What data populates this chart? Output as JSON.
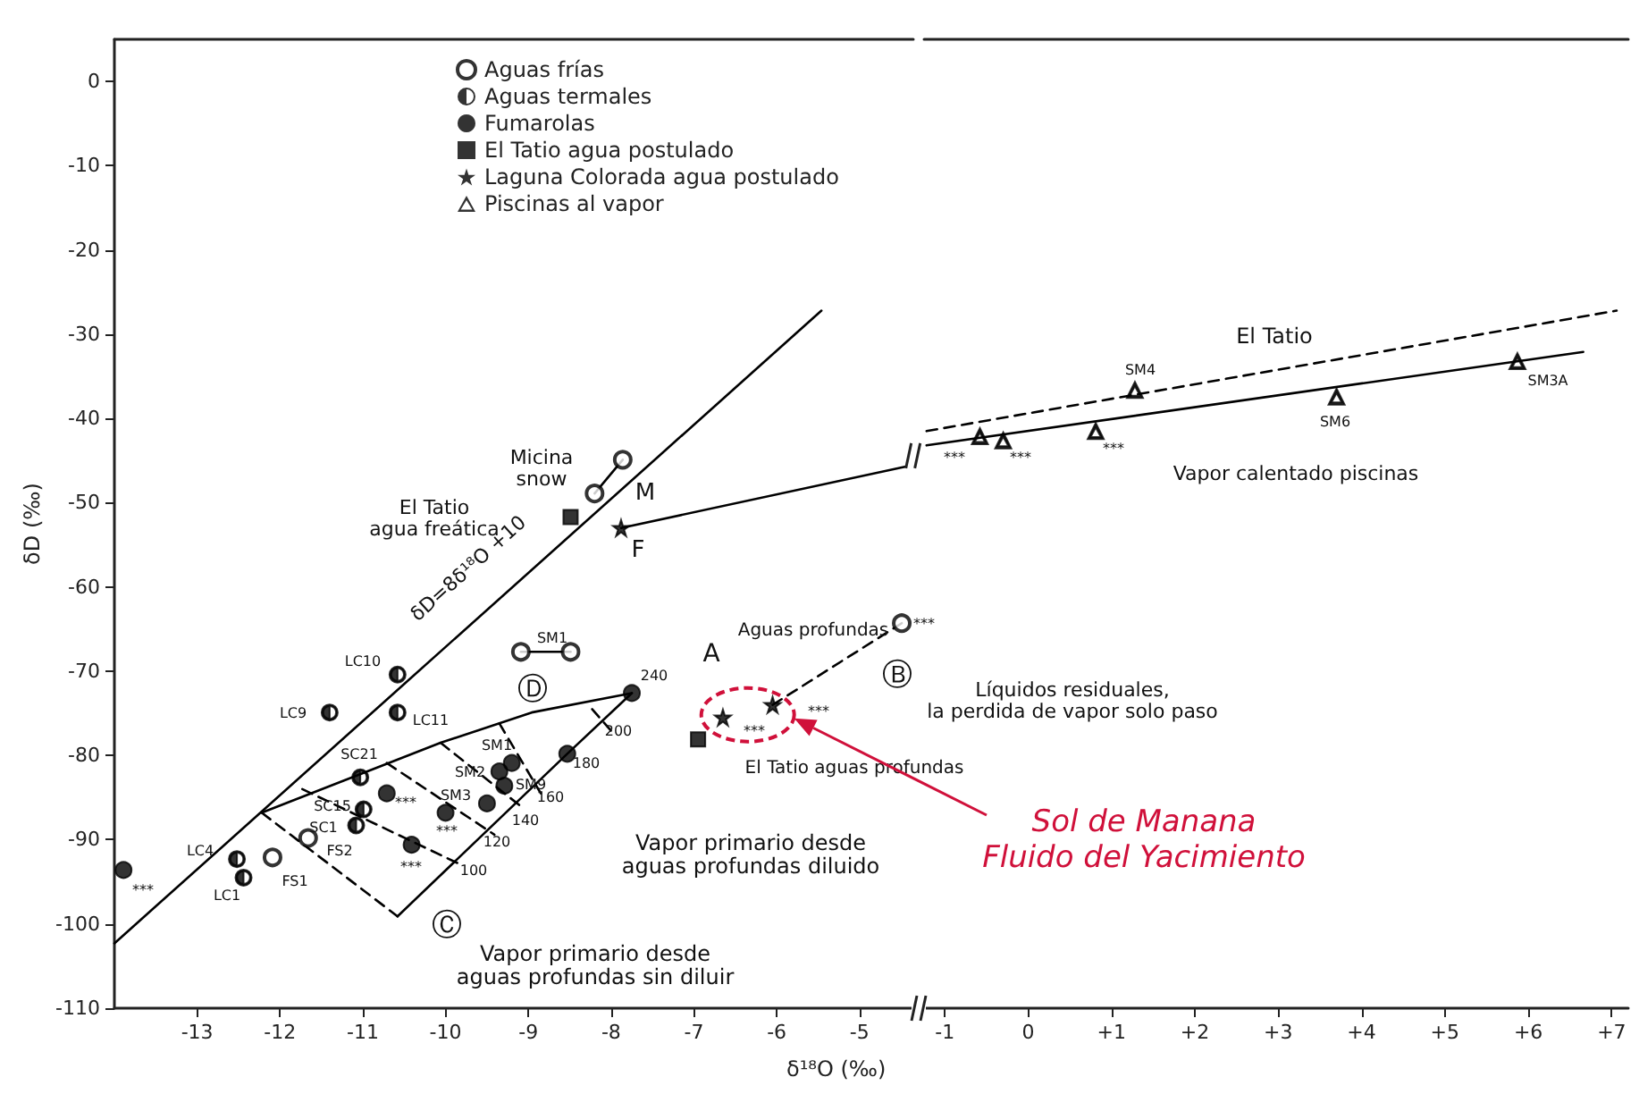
{
  "chart_data": [
    {
      "type": "scatter",
      "xlabel": "δ¹⁸O (‰)",
      "ylabel": "δD (‰)",
      "xlim": [
        -14,
        -4.35
      ],
      "ylim": [
        -110,
        5
      ],
      "xticks": [
        -13,
        -12,
        -11,
        -10,
        -9,
        -8,
        -7,
        -6,
        -5
      ],
      "yticks": [
        0,
        -10,
        -20,
        -30,
        -40,
        -50,
        -60,
        -70,
        -80,
        -90,
        -100,
        -110
      ],
      "grid": false,
      "legend": "top",
      "series": [
        {
          "name": "Aguas frías",
          "color": "#000000",
          "marker": "circle-open",
          "x": [
            -7.86,
            -8.2,
            -9.09,
            -8.49,
            -12.09,
            -11.66,
            -4.49
          ],
          "values": [
            -44.9,
            -48.9,
            -67.7,
            -67.7,
            -92.1,
            -89.8,
            -64.3
          ]
        },
        {
          "name": "Aguas termales",
          "color": "#000000",
          "marker": "circle-half",
          "x": [
            -10.58,
            -10.58,
            -11.4,
            -11.03,
            -10.99,
            -11.08,
            -12.52,
            -12.44
          ],
          "values": [
            -70.4,
            -74.9,
            -74.9,
            -82.6,
            -86.4,
            -88.3,
            -92.3,
            -94.5
          ]
        },
        {
          "name": "Fumarolas",
          "color": "#000000",
          "marker": "circle",
          "x": [
            -13.89,
            -10.71,
            -10.0,
            -10.41,
            -9.35,
            -9.2,
            -9.29,
            -9.5,
            -8.53,
            -7.75
          ],
          "values": [
            -93.6,
            -84.5,
            -86.8,
            -90.6,
            -81.9,
            -80.9,
            -83.6,
            -85.7,
            -79.8,
            -72.6
          ]
        },
        {
          "name": "El Tatio agua postulado",
          "color": "#000000",
          "marker": "square",
          "x": [
            -8.49,
            -6.95
          ],
          "values": [
            -51.7,
            -78.1
          ]
        },
        {
          "name": "Laguna Colorada agua postulado",
          "color": "#000000",
          "marker": "star",
          "x": [
            -7.88,
            -6.65,
            -6.05
          ],
          "values": [
            -53.0,
            -75.5,
            -74.0
          ]
        },
        {
          "type": "line",
          "color": "#000000",
          "line_style": "solid",
          "marker": "none",
          "x": [
            -14,
            -5.46
          ],
          "values": [
            -102.3,
            -27.2
          ]
        },
        {
          "type": "line",
          "color": "#000000",
          "line_style": "solid",
          "marker": "none",
          "x": [
            -7.88,
            -4.44
          ],
          "values": [
            -53.0,
            -45.7
          ]
        },
        {
          "type": "line",
          "color": "#000000",
          "line_style": "solid",
          "marker": "none",
          "x": [
            -8.2,
            -7.86
          ],
          "values": [
            -48.9,
            -44.9
          ]
        },
        {
          "type": "line",
          "color": "#000000",
          "line_style": "solid",
          "marker": "none",
          "x": [
            -9.09,
            -8.49
          ],
          "values": [
            -67.7,
            -67.7
          ]
        },
        {
          "type": "line",
          "color": "#000000",
          "line_style": "solid",
          "marker": "none",
          "x": [
            -12.22,
            -10.06,
            -8.96,
            -7.75
          ],
          "values": [
            -86.8,
            -78.5,
            -74.9,
            -72.6
          ]
        },
        {
          "type": "line",
          "color": "#000000",
          "line_style": "solid",
          "marker": "none",
          "x": [
            -10.58,
            -8.53,
            -7.75
          ],
          "values": [
            -99.1,
            -79.8,
            -72.6
          ]
        },
        {
          "type": "line",
          "color": "#000000",
          "line_style": "dashed",
          "marker": "none",
          "x": [
            -12.22,
            -10.58
          ],
          "values": [
            -86.8,
            -99.1
          ]
        },
        {
          "type": "line",
          "color": "#000000",
          "line_style": "dashed",
          "marker": "none",
          "x": [
            -11.73,
            -9.85
          ],
          "values": [
            -84.0,
            -92.8
          ]
        },
        {
          "type": "line",
          "color": "#000000",
          "line_style": "dashed",
          "marker": "none",
          "x": [
            -10.71,
            -9.41
          ],
          "values": [
            -80.9,
            -89.4
          ]
        },
        {
          "type": "line",
          "color": "#000000",
          "line_style": "dashed",
          "marker": "none",
          "x": [
            -10.06,
            -9.07
          ],
          "values": [
            -78.5,
            -86.2
          ]
        },
        {
          "type": "line",
          "color": "#000000",
          "line_style": "dashed",
          "marker": "none",
          "x": [
            -9.35,
            -8.85
          ],
          "values": [
            -76.2,
            -84.5
          ]
        },
        {
          "type": "line",
          "color": "#000000",
          "line_style": "dashed",
          "marker": "none",
          "x": [
            -8.23,
            -7.99
          ],
          "values": [
            -74.5,
            -77.2
          ]
        },
        {
          "type": "line",
          "color": "#000000",
          "line_style": "dashed",
          "marker": "none",
          "x": [
            -6.05,
            -4.49
          ],
          "values": [
            -74.0,
            -64.3
          ]
        }
      ],
      "annotations": [
        "Micina\nsnow",
        "M",
        "El Tatio\nagua freática",
        "F",
        "δD=8δ¹⁸O +10",
        "SM1",
        "LC10",
        "LC9",
        "LC11",
        "Ⓓ",
        "240",
        "200",
        "180",
        "160",
        "140",
        "120",
        "100",
        "SM1",
        "SM2",
        "SM9",
        "SM3",
        "SC21",
        "SC15",
        "SC1",
        "FS2",
        "LC4",
        "LC1",
        "FS1",
        "***",
        "***",
        "***",
        "***",
        "***",
        "***",
        "***",
        "A",
        "Aguas profundas",
        "Ⓑ",
        "El Tatio aguas profundas",
        "Vapor primario desde\naguas profundas diluido",
        "Ⓒ",
        "Vapor primario desde\naguas profundas sin diluir"
      ]
    },
    {
      "type": "scatter",
      "xlim": [
        -1.25,
        7.2
      ],
      "ylim": [
        -110,
        5
      ],
      "xticks": [
        -1,
        0,
        {
          "value": 1,
          "label": "+1"
        },
        {
          "value": 2,
          "label": "+2"
        },
        {
          "value": 3,
          "label": "+3"
        },
        {
          "value": 4,
          "label": "+4"
        },
        {
          "value": 5,
          "label": "+5"
        },
        {
          "value": 6,
          "label": "+6"
        },
        {
          "value": 7,
          "label": "+7"
        }
      ],
      "yticks": [
        0,
        -10,
        -20,
        -30,
        -40,
        -50,
        -60,
        -70,
        -80,
        -90,
        -100,
        -110
      ],
      "grid": false,
      "tick_labels": "x",
      "series": [
        {
          "name": "Piscinas al vapor",
          "color": "#000000",
          "marker": "triangle-open",
          "x": [
            -0.58,
            -0.3,
            0.81,
            1.28,
            3.7,
            5.87
          ],
          "values": [
            -42.1,
            -42.6,
            -41.5,
            -36.6,
            -37.4,
            -33.2
          ]
        },
        {
          "type": "line",
          "color": "#000000",
          "line_style": "solid",
          "marker": "none",
          "x": [
            -1.22,
            6.66
          ],
          "values": [
            -43.2,
            -32.1
          ]
        },
        {
          "type": "line",
          "color": "#000000",
          "line_style": "dashed",
          "marker": "none",
          "x": [
            -1.22,
            7.06
          ],
          "values": [
            -41.5,
            -27.2
          ]
        }
      ],
      "annotations": [
        "Sol de Manana\nFluido del Yacimiento",
        "Líquidos residuales,\nla perdida de vapor solo paso",
        "El Tatio",
        "SM4",
        "SM6",
        "SM3A",
        "***",
        "***",
        "***",
        "Vapor calentado piscinas"
      ]
    }
  ]
}
